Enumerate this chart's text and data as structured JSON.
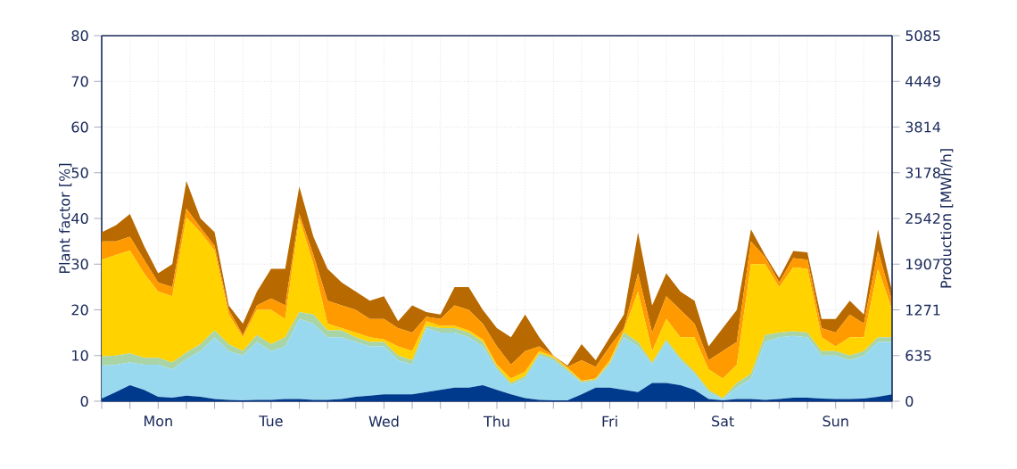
{
  "chart_data": {
    "type": "area",
    "stacked": true,
    "ylabel": "Plant factor [%]",
    "y2label": "Production [MWh/h]",
    "categories": [
      null,
      null,
      null,
      null,
      "Mon",
      null,
      null,
      null,
      null,
      null,
      null,
      null,
      "Tue",
      null,
      null,
      null,
      null,
      null,
      null,
      null,
      "Wed",
      null,
      null,
      null,
      null,
      null,
      null,
      null,
      "Thu",
      null,
      null,
      null,
      null,
      null,
      null,
      null,
      "Fri",
      null,
      null,
      null,
      null,
      null,
      null,
      null,
      "Sat",
      null,
      null,
      null,
      null,
      null,
      null,
      null,
      "Sun",
      null,
      null,
      null,
      null
    ],
    "ylim": [
      0,
      80
    ],
    "yticks": [
      0,
      10,
      20,
      30,
      40,
      50,
      60,
      70,
      80
    ],
    "y2lim": [
      0,
      5085
    ],
    "y2ticks": [
      0,
      635,
      1271,
      1907,
      2542,
      3178,
      3814,
      4449,
      5085
    ],
    "grid": true,
    "series": [
      {
        "color": "#003a8c",
        "values": [
          0.6,
          2,
          3.5,
          2.5,
          1,
          0.8,
          1.2,
          1,
          0.5,
          0.3,
          0.2,
          0.3,
          0.3,
          0.5,
          0.5,
          0.3,
          0.3,
          0.5,
          1,
          1.2,
          1.5,
          1.5,
          1.5,
          2,
          2.5,
          3,
          3,
          3.5,
          2.5,
          1.5,
          0.7,
          0.3,
          0.2,
          0.2,
          1.5,
          3,
          3,
          2.5,
          2,
          4,
          4,
          3.5,
          2.5,
          0.5,
          0.2,
          0.5,
          0.5,
          0.3,
          0.5,
          0.8,
          0.8,
          0.6,
          0.5,
          0.5,
          0.6,
          1,
          1.5
        ]
      },
      {
        "color": "#99d9ef",
        "values": [
          7.2,
          6,
          5,
          5.5,
          7,
          6.2,
          8,
          10,
          13.5,
          10.7,
          9.8,
          12.7,
          10.7,
          11.5,
          17.5,
          16.7,
          13.7,
          13.5,
          12,
          10.8,
          10.5,
          7.5,
          6.5,
          14,
          12.5,
          12,
          11,
          8.5,
          4.5,
          2,
          4.3,
          9.7,
          8.8,
          6.3,
          2.5,
          1.5,
          5,
          11.5,
          10,
          4,
          9,
          5.5,
          3.5,
          1.5,
          0.3,
          2.5,
          4.5,
          12.7,
          13.5,
          13.5,
          13.2,
          9.4,
          9.5,
          8.5,
          9.4,
          12,
          11.5
        ]
      },
      {
        "color": "#a8d4a6",
        "values": [
          2,
          2,
          2,
          1.5,
          1.5,
          1.5,
          1.5,
          1.5,
          1.5,
          1.5,
          1,
          1.5,
          1.5,
          2,
          1.5,
          2,
          1.5,
          1.5,
          1,
          1,
          1,
          1,
          1,
          0.5,
          1,
          1,
          1,
          1,
          0.5,
          0.5,
          0.5,
          0.5,
          0.5,
          0.5,
          0.3,
          0.3,
          0.5,
          1,
          1,
          0.5,
          0.5,
          0.5,
          0.5,
          0.5,
          0.2,
          1,
          1,
          1.5,
          1,
          1,
          1,
          1,
          1,
          1,
          1,
          1,
          1
        ]
      },
      {
        "color": "#ffd200",
        "values": [
          21.2,
          22,
          22.5,
          18.5,
          14.5,
          14.5,
          29.5,
          24.5,
          17.5,
          6.5,
          3,
          5.5,
          7.5,
          4,
          20.5,
          11,
          1.5,
          0.5,
          1,
          1,
          0.5,
          2,
          2,
          1,
          0.5,
          0.5,
          0.5,
          0.5,
          0.5,
          1,
          1,
          0.5,
          0.3,
          0.3,
          0.2,
          0.2,
          0.5,
          0.5,
          11,
          2.5,
          4.5,
          4.5,
          7.5,
          4.5,
          4.3,
          4,
          24,
          15.5,
          10,
          14,
          14,
          3,
          1,
          4,
          3,
          15,
          6
        ]
      },
      {
        "color": "#ff9a00",
        "values": [
          4,
          3,
          3,
          3,
          2,
          2,
          2,
          1,
          1,
          1,
          0.5,
          1,
          2.5,
          3,
          1,
          2,
          5,
          5,
          5,
          4,
          4.5,
          4,
          4,
          1,
          1.5,
          4.5,
          4.5,
          3.5,
          4,
          3,
          4.5,
          1,
          0.2,
          0.2,
          4.5,
          2.5,
          3,
          0.5,
          4,
          4,
          5,
          6,
          3,
          2,
          6,
          5,
          5,
          1.5,
          1,
          2,
          2,
          2,
          3,
          5,
          3,
          4,
          2
        ]
      },
      {
        "color": "#b86a00",
        "values": [
          2,
          3.5,
          5,
          3,
          2,
          5,
          6,
          2,
          3,
          1,
          2.5,
          3,
          6.5,
          8,
          6,
          4,
          7,
          5,
          4,
          4,
          5,
          1.5,
          6,
          1,
          1,
          4,
          5,
          3,
          4,
          6,
          8,
          2,
          0,
          0.3,
          3.5,
          1.5,
          2,
          3,
          9,
          6,
          5,
          4,
          5,
          3,
          5,
          7,
          2.6,
          0.5,
          1,
          1.6,
          1.6,
          2,
          3,
          3,
          2,
          4.6,
          2
        ]
      }
    ]
  }
}
